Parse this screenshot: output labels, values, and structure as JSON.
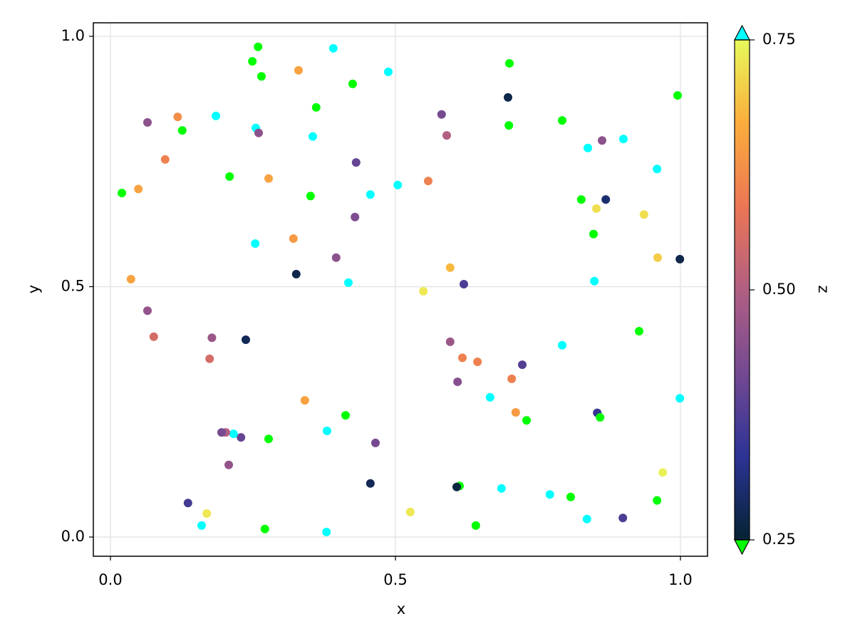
{
  "chart_data": {
    "type": "scatter",
    "xlabel": "x",
    "ylabel": "y",
    "colorbar_label": "z",
    "xlim": [
      -0.03,
      1.0475
    ],
    "ylim": [
      -0.0384,
      1.027
    ],
    "xticks": [
      {
        "value": 0,
        "label": "0.0"
      },
      {
        "value": 0.5,
        "label": "0.5"
      },
      {
        "value": 1,
        "label": "1.0"
      }
    ],
    "yticks": [
      {
        "value": 0,
        "label": "0.0"
      },
      {
        "value": 0.5,
        "label": "0.5"
      },
      {
        "value": 1,
        "label": "1.0"
      }
    ],
    "grid": true,
    "clim": [
      0.25,
      0.75
    ],
    "cticks": [
      {
        "value": 0.25,
        "label": "0.25"
      },
      {
        "value": 0.5,
        "label": "0.50"
      },
      {
        "value": 0.75,
        "label": "0.75"
      }
    ],
    "colormap": [
      "#042333",
      "#2c3395",
      "#744992",
      "#b15f82",
      "#eb7655",
      "#fbad3c",
      "#e8fa5b"
    ],
    "lowclip": "#00ff00",
    "highclip": "#00ffff",
    "x": [
      0.02,
      0.049,
      0.036,
      0.065,
      0.096,
      0.118,
      0.126,
      0.065,
      0.076,
      0.185,
      0.209,
      0.178,
      0.174,
      0.2375,
      0.259,
      0.249,
      0.265,
      0.255,
      0.26,
      0.2775,
      0.254,
      0.33,
      0.355,
      0.361,
      0.351,
      0.321,
      0.326,
      0.391,
      0.425,
      0.431,
      0.429,
      0.396,
      0.4175,
      0.456,
      0.4875,
      0.504,
      0.5575,
      0.581,
      0.59,
      0.549,
      0.596,
      0.62,
      0.6975,
      0.7,
      0.699,
      0.7925,
      0.8375,
      0.8625,
      0.9,
      0.826,
      0.869,
      0.8525,
      0.936,
      0.959,
      0.8475,
      0.96,
      0.999,
      0.995,
      0.849,
      0.9275,
      0.7925,
      0.596,
      0.6175,
      0.644,
      0.7225,
      0.609,
      0.704,
      0.666,
      0.711,
      0.73,
      0.854,
      0.859,
      0.999,
      0.341,
      0.4125,
      0.38,
      0.2775,
      0.229,
      0.216,
      0.2025,
      0.195,
      0.465,
      0.2075,
      0.456,
      0.6125,
      0.6075,
      0.686,
      0.771,
      0.8075,
      0.969,
      0.959,
      0.899,
      0.836,
      0.641,
      0.526,
      0.379,
      0.271,
      0.169,
      0.16,
      0.136
    ],
    "y": [
      0.687,
      0.695,
      0.515,
      0.828,
      0.754,
      0.839,
      0.812,
      0.452,
      0.4,
      0.841,
      0.72,
      0.398,
      0.356,
      0.394,
      0.979,
      0.95,
      0.92,
      0.817,
      0.807,
      0.716,
      0.586,
      0.932,
      0.8,
      0.858,
      0.681,
      0.596,
      0.525,
      0.976,
      0.905,
      0.748,
      0.639,
      0.558,
      0.508,
      0.684,
      0.929,
      0.703,
      0.711,
      0.844,
      0.802,
      0.491,
      0.538,
      0.505,
      0.878,
      0.946,
      0.822,
      0.832,
      0.777,
      0.792,
      0.795,
      0.674,
      0.674,
      0.656,
      0.644,
      0.735,
      0.605,
      0.558,
      0.555,
      0.882,
      0.511,
      0.411,
      0.383,
      0.39,
      0.358,
      0.35,
      0.344,
      0.31,
      0.316,
      0.279,
      0.249,
      0.233,
      0.248,
      0.239,
      0.277,
      0.273,
      0.243,
      0.212,
      0.196,
      0.199,
      0.206,
      0.209,
      0.209,
      0.188,
      0.144,
      0.107,
      0.102,
      0.1,
      0.097,
      0.085,
      0.08,
      0.129,
      0.073,
      0.038,
      0.036,
      0.023,
      0.05,
      0.01,
      0.016,
      0.047,
      0.023,
      0.068
    ],
    "z": [
      0.2,
      0.65,
      0.65,
      0.45,
      0.6,
      0.62,
      0.2,
      0.46,
      0.55,
      0.8,
      0.2,
      0.47,
      0.55,
      0.28,
      0.2,
      0.2,
      0.2,
      0.8,
      0.45,
      0.65,
      0.8,
      0.65,
      0.8,
      0.2,
      0.2,
      0.64,
      0.27,
      0.8,
      0.2,
      0.4,
      0.43,
      0.45,
      0.8,
      0.8,
      0.8,
      0.8,
      0.6,
      0.42,
      0.5,
      0.73,
      0.68,
      0.37,
      0.27,
      0.2,
      0.2,
      0.2,
      0.8,
      0.45,
      0.8,
      0.2,
      0.3,
      0.72,
      0.72,
      0.8,
      0.2,
      0.7,
      0.27,
      0.2,
      0.8,
      0.2,
      0.8,
      0.47,
      0.6,
      0.6,
      0.38,
      0.44,
      0.6,
      0.8,
      0.64,
      0.2,
      0.35,
      0.2,
      0.8,
      0.65,
      0.2,
      0.8,
      0.2,
      0.4,
      0.8,
      0.5,
      0.42,
      0.42,
      0.46,
      0.28,
      0.2,
      0.26,
      0.8,
      0.8,
      0.2,
      0.74,
      0.2,
      0.37,
      0.8,
      0.2,
      0.73,
      0.8,
      0.2,
      0.73,
      0.8,
      0.36
    ]
  }
}
